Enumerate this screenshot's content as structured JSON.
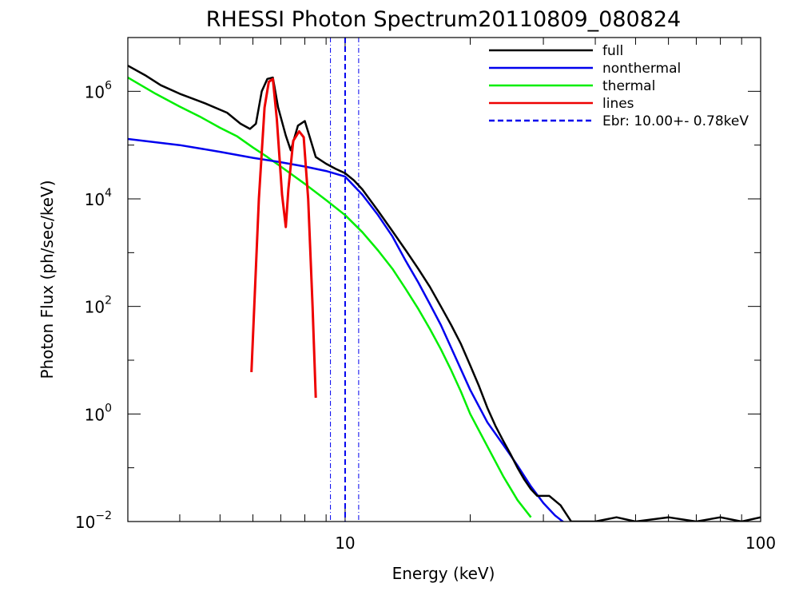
{
  "chart_data": {
    "type": "line",
    "title": "RHESSI Photon Spectrum20110809_080824",
    "xlabel": "Energy (keV)",
    "ylabel": "Photon Flux (ph/sec/keV)",
    "xscale": "log",
    "yscale": "log",
    "xlim": [
      3.0,
      100
    ],
    "ylim": [
      0.01,
      10000000
    ],
    "x_ticks": [
      {
        "value": 10,
        "label": "10"
      },
      {
        "value": 100,
        "label": "100"
      }
    ],
    "y_ticks": [
      {
        "value": 0.01,
        "base": "10",
        "exp": "−2"
      },
      {
        "value": 1,
        "base": "10",
        "exp": "0"
      },
      {
        "value": 100,
        "base": "10",
        "exp": "2"
      },
      {
        "value": 10000,
        "base": "10",
        "exp": "4"
      },
      {
        "value": 1000000,
        "base": "10",
        "exp": "6"
      }
    ],
    "legend_position": "top-right",
    "series": [
      {
        "name": "full",
        "color": "#000000",
        "style": "solid",
        "points": [
          [
            3.0,
            3000000.0
          ],
          [
            3.3,
            2000000.0
          ],
          [
            3.6,
            1300000.0
          ],
          [
            4.0,
            900000.0
          ],
          [
            4.6,
            600000.0
          ],
          [
            5.2,
            400000.0
          ],
          [
            5.6,
            250000.0
          ],
          [
            5.9,
            200000.0
          ],
          [
            6.1,
            250000.0
          ],
          [
            6.3,
            1000000.0
          ],
          [
            6.5,
            1700000.0
          ],
          [
            6.7,
            1800000.0
          ],
          [
            6.9,
            500000.0
          ],
          [
            7.2,
            150000.0
          ],
          [
            7.4,
            80000.0
          ],
          [
            7.7,
            230000.0
          ],
          [
            8.0,
            280000.0
          ],
          [
            8.2,
            150000.0
          ],
          [
            8.5,
            60000.0
          ],
          [
            9.0,
            45000.0
          ],
          [
            9.5,
            36000.0
          ],
          [
            10.0,
            30000.0
          ],
          [
            10.5,
            22000.0
          ],
          [
            11,
            15000.0
          ],
          [
            12,
            6000.0
          ],
          [
            13,
            2500.0
          ],
          [
            14,
            1100.0
          ],
          [
            15,
            500.0
          ],
          [
            16,
            230.0
          ],
          [
            17,
            100.0
          ],
          [
            18,
            45.0
          ],
          [
            19,
            20.0
          ],
          [
            20,
            8
          ],
          [
            21,
            3.3
          ],
          [
            22,
            1.3
          ],
          [
            23,
            0.6
          ],
          [
            24,
            0.32
          ],
          [
            25,
            0.18
          ],
          [
            26,
            0.1
          ],
          [
            27,
            0.06
          ],
          [
            28,
            0.04
          ],
          [
            29,
            0.03
          ],
          [
            31,
            0.03
          ],
          [
            33,
            0.02
          ],
          [
            35,
            0.01
          ],
          [
            40,
            0.01
          ],
          [
            45,
            0.012
          ],
          [
            50,
            0.01
          ],
          [
            60,
            0.012
          ],
          [
            70,
            0.01
          ],
          [
            80,
            0.012
          ],
          [
            90,
            0.01
          ],
          [
            100,
            0.012
          ]
        ]
      },
      {
        "name": "nonthermal",
        "color": "#0000ee",
        "style": "solid",
        "points": [
          [
            3.0,
            130000.0
          ],
          [
            4.0,
            100000.0
          ],
          [
            5.0,
            75000.0
          ],
          [
            6.0,
            58000.0
          ],
          [
            7.0,
            48000.0
          ],
          [
            8.0,
            40000.0
          ],
          [
            9.0,
            33000.0
          ],
          [
            10.0,
            26000.0
          ],
          [
            11,
            12000.0
          ],
          [
            12,
            5000.0
          ],
          [
            13,
            2000.0
          ],
          [
            14,
            700.0
          ],
          [
            15,
            280.0
          ],
          [
            16,
            110.0
          ],
          [
            17,
            45
          ],
          [
            18,
            17
          ],
          [
            20,
            2.8
          ],
          [
            22,
            0.7
          ],
          [
            24,
            0.27
          ],
          [
            26,
            0.11
          ],
          [
            28,
            0.045
          ],
          [
            30,
            0.022
          ],
          [
            32,
            0.013
          ],
          [
            34,
            0.009
          ]
        ]
      },
      {
        "name": "thermal",
        "color": "#00ee00",
        "style": "solid",
        "points": [
          [
            3.0,
            1800000.0
          ],
          [
            3.5,
            900000.0
          ],
          [
            4.0,
            520000.0
          ],
          [
            4.5,
            330000.0
          ],
          [
            5.0,
            210000.0
          ],
          [
            5.5,
            145000.0
          ],
          [
            6.0,
            90000.0
          ],
          [
            6.5,
            60000.0
          ],
          [
            7.0,
            40000.0
          ],
          [
            8.0,
            19000.0
          ],
          [
            9.0,
            9500.0
          ],
          [
            10,
            5000.0
          ],
          [
            11,
            2400.0
          ],
          [
            12,
            1100.0
          ],
          [
            13,
            500.0
          ],
          [
            14,
            210.0
          ],
          [
            15,
            90
          ],
          [
            16,
            38
          ],
          [
            17,
            16
          ],
          [
            18,
            6.5
          ],
          [
            19,
            2.6
          ],
          [
            20,
            1.0
          ],
          [
            22,
            0.25
          ],
          [
            24,
            0.07
          ],
          [
            26,
            0.025
          ],
          [
            28,
            0.012
          ]
        ]
      },
      {
        "name": "lines",
        "color": "#ee0000",
        "style": "solid",
        "points": [
          [
            5.95,
            6
          ],
          [
            6.2,
            10000.0
          ],
          [
            6.4,
            500000.0
          ],
          [
            6.55,
            1500000.0
          ],
          [
            6.7,
            1700000.0
          ],
          [
            6.85,
            300000.0
          ],
          [
            7.05,
            12000.0
          ],
          [
            7.2,
            3000.0
          ],
          [
            7.3,
            15000.0
          ],
          [
            7.5,
            120000.0
          ],
          [
            7.75,
            180000.0
          ],
          [
            7.95,
            140000.0
          ],
          [
            8.15,
            10000.0
          ],
          [
            8.35,
            100.0
          ],
          [
            8.5,
            2
          ]
        ]
      }
    ],
    "break_energy": {
      "name": "Ebr:  10.00+-  0.78keV",
      "value": 10.0,
      "lower": 9.22,
      "upper": 10.78,
      "color": "#0000ee",
      "style": "dashed"
    }
  }
}
